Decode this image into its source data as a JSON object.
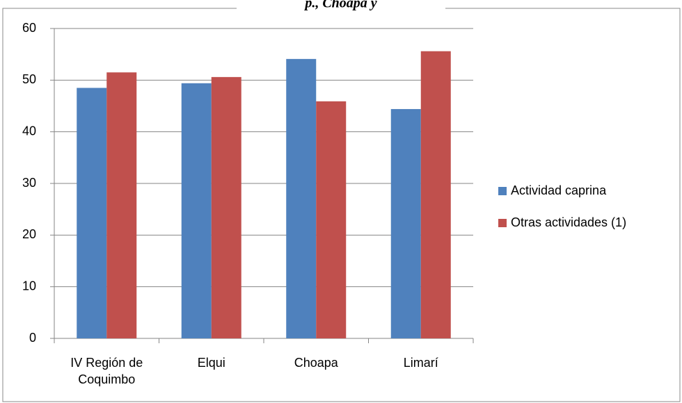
{
  "chart_data": {
    "type": "bar",
    "title": "p., Choapa y",
    "categories": [
      "IV Región de Coquimbo",
      "Elqui",
      "Choapa",
      "Limarí"
    ],
    "series": [
      {
        "name": "Actividad caprina",
        "color": "#4f81bd",
        "values": [
          48.5,
          49.4,
          54.1,
          44.4
        ]
      },
      {
        "name": "Otras actividades (1)",
        "color": "#c0504d",
        "values": [
          51.5,
          50.6,
          45.9,
          55.6
        ]
      }
    ],
    "ylim": [
      0,
      60
    ],
    "yticks": [
      0,
      10,
      20,
      30,
      40,
      50,
      60
    ],
    "grid": true,
    "legend": "right"
  }
}
